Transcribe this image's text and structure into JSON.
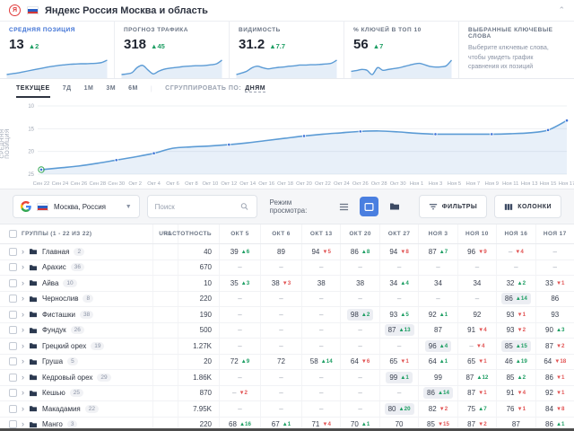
{
  "topbar": {
    "title": "Яндекс Россия Москва и область"
  },
  "cards": [
    {
      "label": "СРЕДНЯЯ ПОЗИЦИЯ",
      "value": "13",
      "delta": "2",
      "delta_dir": "up",
      "spark": [
        4,
        4.3,
        4.6,
        5,
        5.4,
        5.8,
        6.2,
        6.6,
        7,
        7.3,
        7.6,
        7.8,
        8,
        8.1,
        8.2,
        8.2,
        8.3,
        8.4,
        8.7,
        9.6
      ]
    },
    {
      "label": "ПРОГНОЗ ТРАФИКА",
      "value": "318",
      "delta": "45",
      "delta_dir": "up",
      "spark": [
        5,
        5.2,
        5.6,
        7.2,
        7.8,
        6.4,
        5.2,
        6,
        6.6,
        6.9,
        7.1,
        7.3,
        7.5,
        7.6,
        7.7,
        7.7,
        7.8,
        8,
        8.3,
        9.4
      ]
    },
    {
      "label": "ВИДИМОСТЬ",
      "value": "31.2",
      "delta": "7.7",
      "delta_dir": "up",
      "spark": [
        5,
        5.4,
        5.9,
        6.8,
        7.2,
        6.8,
        6.5,
        6.7,
        6.9,
        7,
        7.2,
        7.3,
        7.5,
        7.5,
        7.6,
        7.6,
        7.7,
        7.8,
        8,
        8.8
      ]
    },
    {
      "label": "% КЛЮЧЕЙ В ТОП 10",
      "value": "56",
      "delta": "7",
      "delta_dir": "up",
      "spark": [
        5,
        5.3,
        5.7,
        5.4,
        3.8,
        6.4,
        5.4,
        5.7,
        6,
        6.3,
        6.8,
        7.3,
        7.8,
        8,
        7.4,
        6.8,
        6.6,
        6.7,
        7.1,
        9.2
      ]
    },
    {
      "label": "ВЫБРАННЫЕ КЛЮЧЕВЫЕ СЛОВА",
      "note": "Выберите ключевые слова, чтобы увидеть график сравнения их позиций"
    }
  ],
  "chart_tabs": {
    "tabs": [
      "ТЕКУЩЕЕ",
      "7Д",
      "1М",
      "3М",
      "6М"
    ],
    "active": "ТЕКУЩЕЕ",
    "group_label": "СГРУППИРОВАТЬ ПО:",
    "group_value": "ДНЯМ"
  },
  "chart_data": {
    "type": "line",
    "title": "",
    "ylabel": "СРЕДНЯЯ ПОЗИЦИЯ",
    "y_inverted": true,
    "ylim": [
      10,
      25
    ],
    "yticks": [
      10,
      15,
      20,
      25
    ],
    "grid": true,
    "categories": [
      "Сен 22",
      "Сен 24",
      "Сен 26",
      "Сен 28",
      "Сен 30",
      "Окт 2",
      "Окт 4",
      "Окт 6",
      "Окт 8",
      "Окт 10",
      "Окт 12",
      "Окт 14",
      "Окт 16",
      "Окт 18",
      "Окт 20",
      "Окт 22",
      "Окт 24",
      "Окт 26",
      "Окт 28",
      "Окт 30",
      "Ноя 1",
      "Ноя 3",
      "Ноя 5",
      "Ноя 7",
      "Ноя 9",
      "Ноя 11",
      "Ноя 13",
      "Ноя 15",
      "Ноя 17"
    ],
    "values": [
      24.0,
      23.6,
      23.2,
      22.6,
      21.9,
      21.2,
      20.4,
      19.3,
      19.0,
      18.8,
      18.5,
      18.1,
      17.6,
      17.1,
      16.6,
      16.2,
      15.9,
      15.6,
      15.5,
      15.7,
      16.0,
      16.2,
      16.2,
      16.2,
      16.2,
      16.1,
      15.9,
      15.3,
      13.2
    ],
    "marker_indices": [
      0,
      4,
      6,
      10,
      14,
      17,
      21,
      24,
      27,
      28
    ],
    "start_marker_color": "#34a853",
    "line_color": "#5b9bd5",
    "dot_color": "#3f73d8"
  },
  "toolbar": {
    "location": "Москва, Россия",
    "search_placeholder": "Поиск",
    "view_mode_label": "Режим просмотра:",
    "filters_label": "ФИЛЬТРЫ",
    "columns_label": "КОЛОНКИ"
  },
  "table": {
    "group_header": "ГРУППЫ (1 - 22 ИЗ 22)",
    "url_header": "URL",
    "freq_header": "ЧАСТОТНОСТЬ",
    "date_columns": [
      "ОКТ 5",
      "ОКТ 6",
      "ОКТ 13",
      "ОКТ 20",
      "ОКТ 27",
      "НОЯ 3",
      "НОЯ 10",
      "НОЯ 16",
      "НОЯ 17"
    ],
    "rows": [
      {
        "name": "Главная",
        "count": "2",
        "freq": "40",
        "cells": [
          {
            "v": "39",
            "d": "6",
            "dir": "up"
          },
          {
            "v": "89"
          },
          {
            "v": "94",
            "d": "5",
            "dir": "down"
          },
          {
            "v": "86",
            "d": "8",
            "dir": "up"
          },
          {
            "v": "94",
            "d": "8",
            "dir": "down"
          },
          {
            "v": "87",
            "d": "7",
            "dir": "up"
          },
          {
            "v": "96",
            "d": "9",
            "dir": "down"
          },
          {
            "v": "–",
            "d": "4",
            "dir": "down"
          },
          {
            "v": "–"
          }
        ]
      },
      {
        "name": "Арахис",
        "count": "36",
        "freq": "670",
        "cells": [
          {
            "v": "–"
          },
          {
            "v": "–"
          },
          {
            "v": "–"
          },
          {
            "v": "–"
          },
          {
            "v": "–"
          },
          {
            "v": "–"
          },
          {
            "v": "–"
          },
          {
            "v": "–"
          },
          {
            "v": "–"
          }
        ]
      },
      {
        "name": "Айва",
        "count": "10",
        "freq": "10",
        "cells": [
          {
            "v": "35",
            "d": "3",
            "dir": "up"
          },
          {
            "v": "38",
            "d": "3",
            "dir": "down"
          },
          {
            "v": "38"
          },
          {
            "v": "38"
          },
          {
            "v": "34",
            "d": "4",
            "dir": "up"
          },
          {
            "v": "34"
          },
          {
            "v": "34"
          },
          {
            "v": "32",
            "d": "2",
            "dir": "up"
          },
          {
            "v": "33",
            "d": "1",
            "dir": "down"
          }
        ]
      },
      {
        "name": "Чернослив",
        "count": "8",
        "freq": "220",
        "cells": [
          {
            "v": "–"
          },
          {
            "v": "–"
          },
          {
            "v": "–"
          },
          {
            "v": "–"
          },
          {
            "v": "–"
          },
          {
            "v": "–"
          },
          {
            "v": "–"
          },
          {
            "v": "86",
            "d": "14",
            "dir": "up",
            "hl": true
          },
          {
            "v": "86"
          }
        ]
      },
      {
        "name": "Фисташки",
        "count": "38",
        "freq": "190",
        "cells": [
          {
            "v": "–"
          },
          {
            "v": "–"
          },
          {
            "v": "–"
          },
          {
            "v": "98",
            "d": "2",
            "dir": "up",
            "hl": true
          },
          {
            "v": "93",
            "d": "5",
            "dir": "up"
          },
          {
            "v": "92",
            "d": "1",
            "dir": "up"
          },
          {
            "v": "92"
          },
          {
            "v": "93",
            "d": "1",
            "dir": "down"
          },
          {
            "v": "93"
          }
        ]
      },
      {
        "name": "Фундук",
        "count": "26",
        "freq": "500",
        "cells": [
          {
            "v": "–"
          },
          {
            "v": "–"
          },
          {
            "v": "–"
          },
          {
            "v": "–"
          },
          {
            "v": "87",
            "d": "13",
            "dir": "up",
            "hl": true
          },
          {
            "v": "87"
          },
          {
            "v": "91",
            "d": "4",
            "dir": "down"
          },
          {
            "v": "93",
            "d": "2",
            "dir": "down"
          },
          {
            "v": "90",
            "d": "3",
            "dir": "up"
          }
        ]
      },
      {
        "name": "Грецкий орех",
        "count": "19",
        "freq": "1.27K",
        "cells": [
          {
            "v": "–"
          },
          {
            "v": "–"
          },
          {
            "v": "–"
          },
          {
            "v": "–"
          },
          {
            "v": "–"
          },
          {
            "v": "96",
            "d": "4",
            "dir": "up",
            "hl": true
          },
          {
            "v": "–",
            "d": "4",
            "dir": "down"
          },
          {
            "v": "85",
            "d": "15",
            "dir": "up",
            "hl": true
          },
          {
            "v": "87",
            "d": "2",
            "dir": "down"
          }
        ]
      },
      {
        "name": "Груша",
        "count": "5",
        "freq": "20",
        "cells": [
          {
            "v": "72",
            "d": "9",
            "dir": "up"
          },
          {
            "v": "72"
          },
          {
            "v": "58",
            "d": "14",
            "dir": "up"
          },
          {
            "v": "64",
            "d": "6",
            "dir": "down"
          },
          {
            "v": "65",
            "d": "1",
            "dir": "down"
          },
          {
            "v": "64",
            "d": "1",
            "dir": "up"
          },
          {
            "v": "65",
            "d": "1",
            "dir": "down"
          },
          {
            "v": "46",
            "d": "19",
            "dir": "up"
          },
          {
            "v": "64",
            "d": "18",
            "dir": "down"
          }
        ]
      },
      {
        "name": "Кедровый орех",
        "count": "29",
        "freq": "1.86K",
        "cells": [
          {
            "v": "–"
          },
          {
            "v": "–"
          },
          {
            "v": "–"
          },
          {
            "v": "–"
          },
          {
            "v": "99",
            "d": "1",
            "dir": "up",
            "hl": true
          },
          {
            "v": "99"
          },
          {
            "v": "87",
            "d": "12",
            "dir": "up"
          },
          {
            "v": "85",
            "d": "2",
            "dir": "up"
          },
          {
            "v": "86",
            "d": "1",
            "dir": "down"
          }
        ]
      },
      {
        "name": "Кешью",
        "count": "25",
        "freq": "870",
        "cells": [
          {
            "v": "–",
            "d": "2",
            "dir": "down"
          },
          {
            "v": "–"
          },
          {
            "v": "–"
          },
          {
            "v": "–"
          },
          {
            "v": "–"
          },
          {
            "v": "86",
            "d": "14",
            "dir": "up",
            "hl": true
          },
          {
            "v": "87",
            "d": "1",
            "dir": "down"
          },
          {
            "v": "91",
            "d": "4",
            "dir": "down"
          },
          {
            "v": "92",
            "d": "1",
            "dir": "down"
          }
        ]
      },
      {
        "name": "Макадамия",
        "count": "22",
        "freq": "7.95K",
        "cells": [
          {
            "v": "–"
          },
          {
            "v": "–"
          },
          {
            "v": "–"
          },
          {
            "v": "–"
          },
          {
            "v": "80",
            "d": "20",
            "dir": "up",
            "hl": true
          },
          {
            "v": "82",
            "d": "2",
            "dir": "down"
          },
          {
            "v": "75",
            "d": "7",
            "dir": "up"
          },
          {
            "v": "76",
            "d": "1",
            "dir": "down"
          },
          {
            "v": "84",
            "d": "8",
            "dir": "down"
          }
        ]
      },
      {
        "name": "Манго",
        "count": "3",
        "freq": "220",
        "cells": [
          {
            "v": "68",
            "d": "16",
            "dir": "up"
          },
          {
            "v": "67",
            "d": "1",
            "dir": "up"
          },
          {
            "v": "71",
            "d": "4",
            "dir": "down"
          },
          {
            "v": "70",
            "d": "1",
            "dir": "up"
          },
          {
            "v": "70"
          },
          {
            "v": "85",
            "d": "15",
            "dir": "down"
          },
          {
            "v": "87",
            "d": "2",
            "dir": "down"
          },
          {
            "v": "87"
          },
          {
            "v": "86",
            "d": "1",
            "dir": "up"
          }
        ]
      }
    ]
  },
  "colors": {
    "accent": "#3b6fd4",
    "green": "#1d9e63",
    "red": "#e25555",
    "line": "#5b9bd5"
  }
}
